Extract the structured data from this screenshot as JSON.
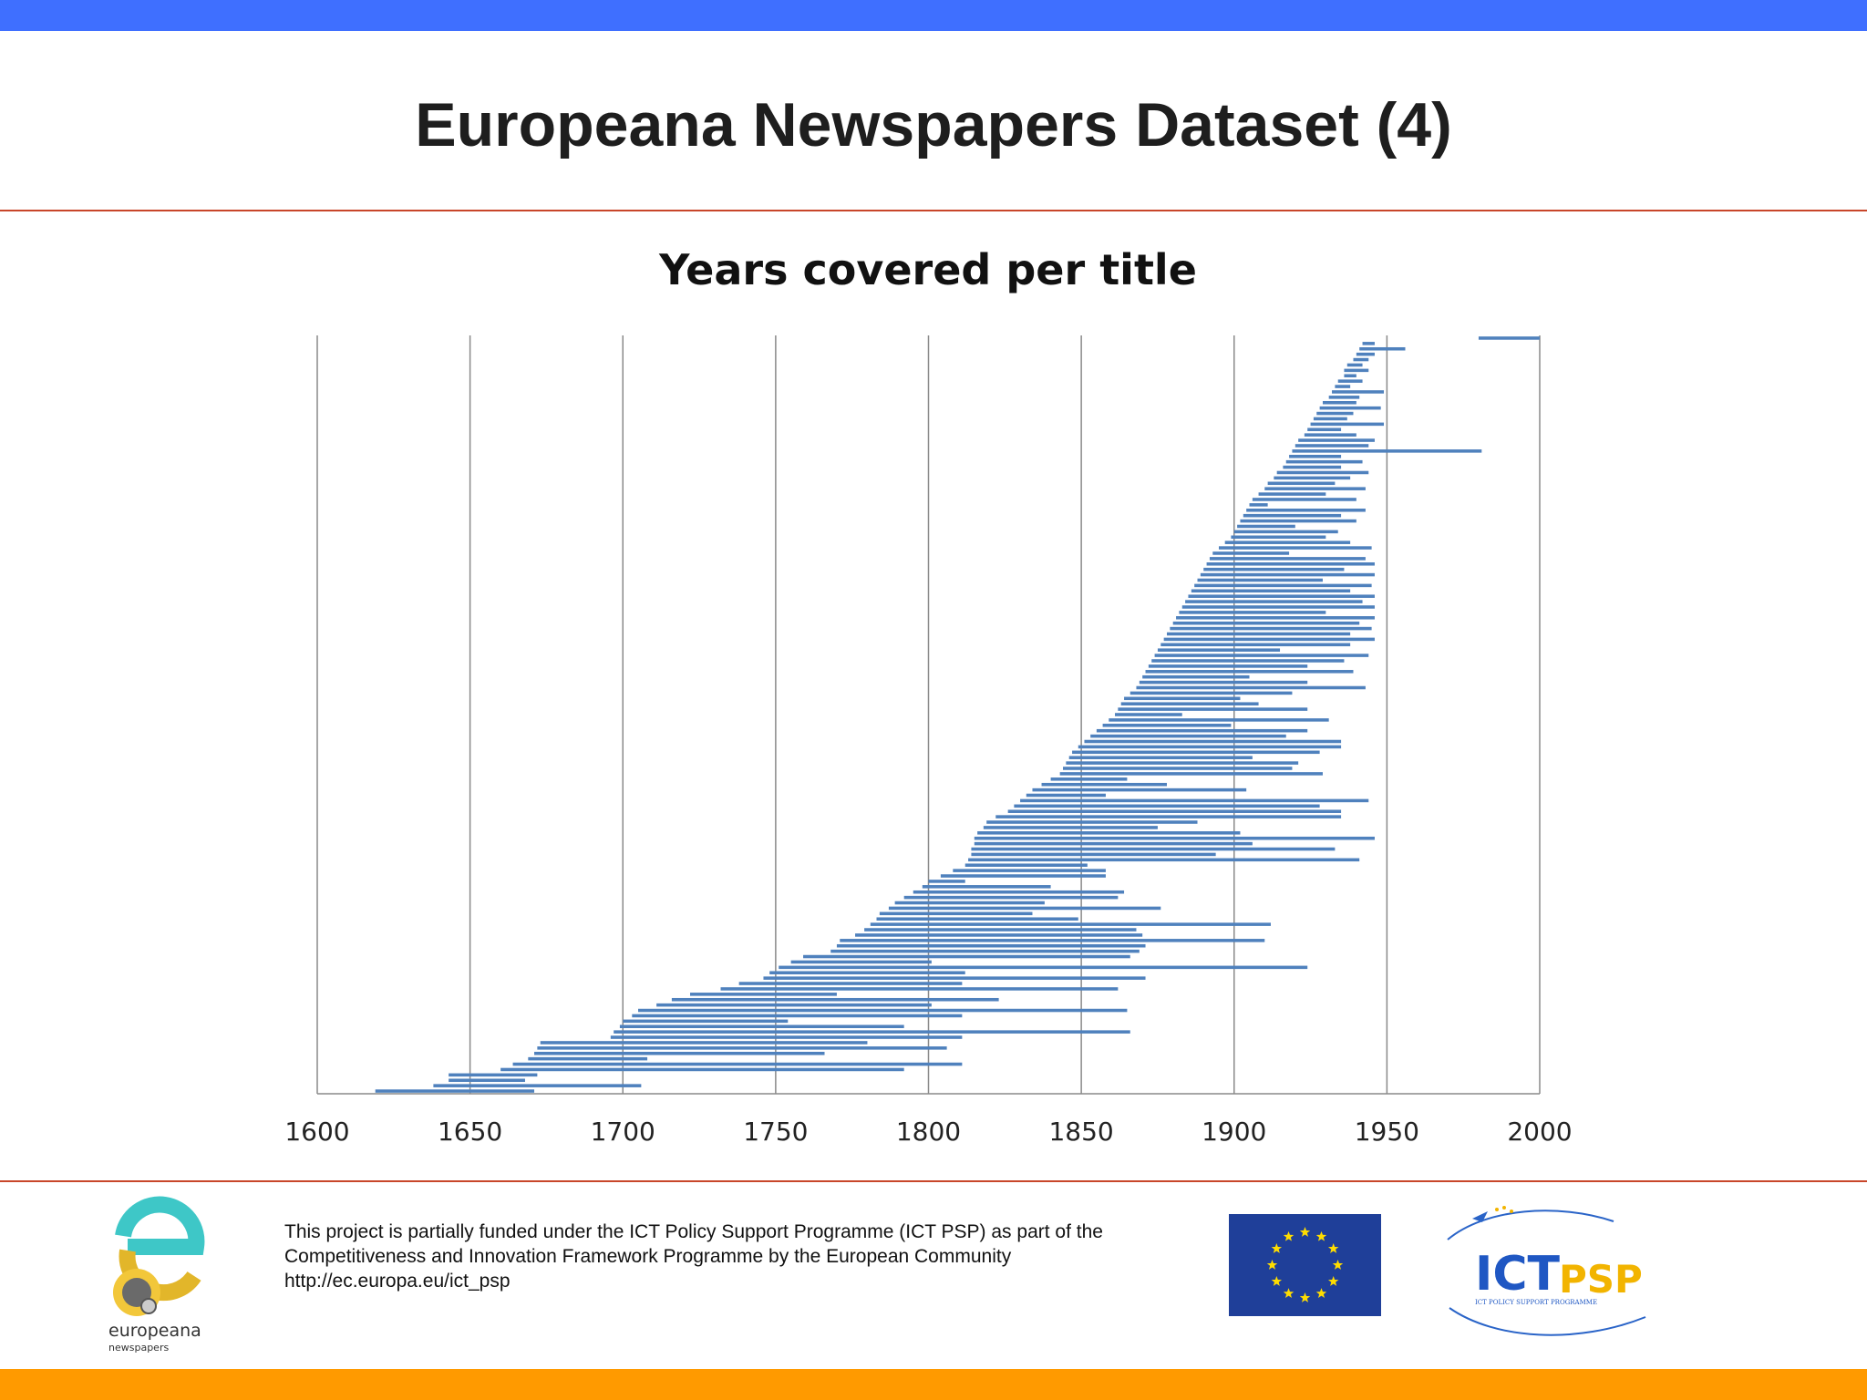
{
  "slide": {
    "title": "Europeana Newspapers Dataset (4)"
  },
  "chart_data": {
    "type": "bar",
    "orientation": "horizontal-floating",
    "title": "Years covered per title",
    "xlabel": "",
    "ylabel": "",
    "xlim": [
      1600,
      2000
    ],
    "xticks": [
      "1600",
      "1650",
      "1700",
      "1750",
      "1800",
      "1850",
      "1900",
      "1950",
      "2000"
    ],
    "grid": "vertical",
    "color": "#4f81bd",
    "series": [
      {
        "values": [
          [
            1619,
            1671
          ],
          [
            1638,
            1706
          ],
          [
            1643,
            1668
          ],
          [
            1643,
            1672
          ],
          [
            1660,
            1792
          ],
          [
            1664,
            1811
          ],
          [
            1669,
            1708
          ],
          [
            1671,
            1766
          ],
          [
            1672,
            1806
          ],
          [
            1673,
            1780
          ],
          [
            1696,
            1811
          ],
          [
            1697,
            1866
          ],
          [
            1699,
            1792
          ],
          [
            1700,
            1754
          ],
          [
            1703,
            1811
          ],
          [
            1705,
            1865
          ],
          [
            1711,
            1801
          ],
          [
            1716,
            1823
          ],
          [
            1722,
            1770
          ],
          [
            1732,
            1862
          ],
          [
            1738,
            1811
          ],
          [
            1746,
            1871
          ],
          [
            1748,
            1812
          ],
          [
            1751,
            1924
          ],
          [
            1755,
            1801
          ],
          [
            1759,
            1866
          ],
          [
            1768,
            1869
          ],
          [
            1770,
            1871
          ],
          [
            1771,
            1910
          ],
          [
            1776,
            1870
          ],
          [
            1779,
            1868
          ],
          [
            1781,
            1912
          ],
          [
            1783,
            1849
          ],
          [
            1784,
            1834
          ],
          [
            1787,
            1876
          ],
          [
            1789,
            1838
          ],
          [
            1792,
            1862
          ],
          [
            1795,
            1864
          ],
          [
            1798,
            1840
          ],
          [
            1800,
            1812
          ],
          [
            1804,
            1858
          ],
          [
            1808,
            1858
          ],
          [
            1812,
            1852
          ],
          [
            1813,
            1941
          ],
          [
            1814,
            1894
          ],
          [
            1814,
            1933
          ],
          [
            1815,
            1906
          ],
          [
            1815,
            1946
          ],
          [
            1816,
            1902
          ],
          [
            1818,
            1875
          ],
          [
            1819,
            1888
          ],
          [
            1822,
            1935
          ],
          [
            1826,
            1935
          ],
          [
            1828,
            1928
          ],
          [
            1830,
            1944
          ],
          [
            1832,
            1858
          ],
          [
            1834,
            1904
          ],
          [
            1837,
            1878
          ],
          [
            1840,
            1865
          ],
          [
            1843,
            1929
          ],
          [
            1844,
            1919
          ],
          [
            1845,
            1921
          ],
          [
            1846,
            1906
          ],
          [
            1847,
            1928
          ],
          [
            1849,
            1935
          ],
          [
            1851,
            1935
          ],
          [
            1853,
            1917
          ],
          [
            1855,
            1924
          ],
          [
            1857,
            1899
          ],
          [
            1859,
            1931
          ],
          [
            1861,
            1883
          ],
          [
            1862,
            1924
          ],
          [
            1863,
            1908
          ],
          [
            1864,
            1902
          ],
          [
            1866,
            1919
          ],
          [
            1868,
            1943
          ],
          [
            1869,
            1924
          ],
          [
            1870,
            1905
          ],
          [
            1871,
            1939
          ],
          [
            1872,
            1924
          ],
          [
            1873,
            1936
          ],
          [
            1874,
            1944
          ],
          [
            1875,
            1915
          ],
          [
            1876,
            1938
          ],
          [
            1877,
            1946
          ],
          [
            1878,
            1938
          ],
          [
            1879,
            1945
          ],
          [
            1880,
            1941
          ],
          [
            1881,
            1946
          ],
          [
            1882,
            1930
          ],
          [
            1883,
            1946
          ],
          [
            1884,
            1942
          ],
          [
            1885,
            1946
          ],
          [
            1886,
            1938
          ],
          [
            1887,
            1945
          ],
          [
            1888,
            1929
          ],
          [
            1889,
            1946
          ],
          [
            1890,
            1936
          ],
          [
            1891,
            1946
          ],
          [
            1892,
            1943
          ],
          [
            1893,
            1918
          ],
          [
            1895,
            1945
          ],
          [
            1897,
            1938
          ],
          [
            1899,
            1930
          ],
          [
            1900,
            1934
          ],
          [
            1901,
            1920
          ],
          [
            1902,
            1940
          ],
          [
            1903,
            1935
          ],
          [
            1904,
            1943
          ],
          [
            1905,
            1911
          ],
          [
            1906,
            1940
          ],
          [
            1908,
            1930
          ],
          [
            1910,
            1943
          ],
          [
            1911,
            1933
          ],
          [
            1913,
            1938
          ],
          [
            1914,
            1944
          ],
          [
            1916,
            1935
          ],
          [
            1917,
            1942
          ],
          [
            1918,
            1935
          ],
          [
            1919,
            1981
          ],
          [
            1920,
            1944
          ],
          [
            1921,
            1946
          ],
          [
            1923,
            1940
          ],
          [
            1924,
            1935
          ],
          [
            1925,
            1949
          ],
          [
            1926,
            1937
          ],
          [
            1927,
            1939
          ],
          [
            1928,
            1948
          ],
          [
            1929,
            1940
          ],
          [
            1931,
            1941
          ],
          [
            1932,
            1949
          ],
          [
            1933,
            1938
          ],
          [
            1934,
            1942
          ],
          [
            1936,
            1940
          ],
          [
            1936,
            1944
          ],
          [
            1937,
            1942
          ],
          [
            1939,
            1944
          ],
          [
            1940,
            1946
          ],
          [
            1941,
            1956
          ],
          [
            1942,
            1946
          ],
          [
            1980,
            2000
          ]
        ]
      }
    ]
  }
}
